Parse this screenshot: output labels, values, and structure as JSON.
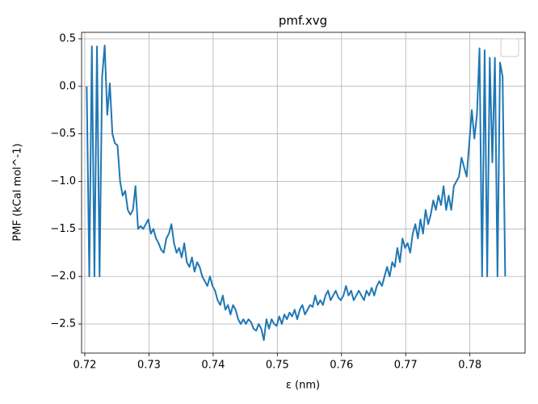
{
  "chart_data": {
    "type": "line",
    "title": "pmf.xvg",
    "x_label": "ε (nm)",
    "y_label": "PMF (kCal mol^-1)",
    "grid": true,
    "legend": "upper right",
    "xlim": [
      0.7195,
      0.7886
    ],
    "ylim": [
      -2.806,
      0.568
    ],
    "xticks": [
      0.72,
      0.73,
      0.74,
      0.75,
      0.76,
      0.77,
      0.78
    ],
    "yticks": [
      0.5,
      {
        "value": 0,
        "label": "0.0"
      },
      {
        "value": -0.5,
        "label": "−0.5"
      },
      {
        "value": -1,
        "label": "−1.0"
      },
      {
        "value": -1.5,
        "label": "−1.5"
      },
      {
        "value": -2,
        "label": "−2.0"
      },
      {
        "value": -2.5,
        "label": "−2.5"
      }
    ],
    "x": [
      0.7203,
      0.7207,
      0.7211,
      0.7215,
      0.7219,
      0.7223,
      0.7227,
      0.7231,
      0.7235,
      0.7239,
      0.7243,
      0.7247,
      0.7251,
      0.7255,
      0.7259,
      0.7263,
      0.7267,
      0.7271,
      0.7275,
      0.7279,
      0.7283,
      0.7287,
      0.7291,
      0.7295,
      0.7299,
      0.7303,
      0.7307,
      0.7311,
      0.7315,
      0.7319,
      0.7323,
      0.7327,
      0.7331,
      0.7335,
      0.7339,
      0.7343,
      0.7347,
      0.7351,
      0.7355,
      0.7359,
      0.7363,
      0.7367,
      0.7371,
      0.7375,
      0.7379,
      0.7383,
      0.7387,
      0.7391,
      0.7395,
      0.7399,
      0.7403,
      0.7407,
      0.7411,
      0.7415,
      0.7419,
      0.7423,
      0.7427,
      0.7431,
      0.7435,
      0.7439,
      0.7443,
      0.7447,
      0.7451,
      0.7455,
      0.7459,
      0.7463,
      0.7467,
      0.7471,
      0.7475,
      0.7479,
      0.7483,
      0.7487,
      0.7491,
      0.7495,
      0.7499,
      0.7503,
      0.7507,
      0.7511,
      0.7515,
      0.7519,
      0.7523,
      0.7527,
      0.7531,
      0.7535,
      0.7539,
      0.7543,
      0.7547,
      0.7551,
      0.7555,
      0.7559,
      0.7563,
      0.7567,
      0.7571,
      0.7575,
      0.7579,
      0.7583,
      0.7587,
      0.7591,
      0.7595,
      0.7599,
      0.7603,
      0.7607,
      0.7611,
      0.7615,
      0.7619,
      0.7623,
      0.7627,
      0.7631,
      0.7635,
      0.7639,
      0.7643,
      0.7647,
      0.7651,
      0.7655,
      0.7659,
      0.7663,
      0.7667,
      0.7671,
      0.7675,
      0.7679,
      0.7683,
      0.7687,
      0.7691,
      0.7695,
      0.7699,
      0.7703,
      0.7707,
      0.7711,
      0.7715,
      0.7719,
      0.7723,
      0.7727,
      0.7731,
      0.7735,
      0.7739,
      0.7743,
      0.7747,
      0.7751,
      0.7755,
      0.7759,
      0.7763,
      0.7767,
      0.7771,
      0.7775,
      0.7779,
      0.7783,
      0.7787,
      0.7791,
      0.7795,
      0.7799,
      0.7803,
      0.7807,
      0.7811,
      0.7815,
      0.7819,
      0.7823,
      0.7827,
      0.7831,
      0.7835,
      0.7839,
      0.7843,
      0.7847,
      0.7851,
      0.7855
    ],
    "series": [
      {
        "color": "#1f77b4",
        "values": [
          0,
          -2,
          0.42,
          -2,
          0.42,
          -2,
          0.1,
          0.43,
          -0.3,
          0.03,
          -0.5,
          -0.6,
          -0.62,
          -1.0,
          -1.15,
          -1.1,
          -1.3,
          -1.35,
          -1.3,
          -1.05,
          -1.5,
          -1.47,
          -1.5,
          -1.45,
          -1.4,
          -1.55,
          -1.5,
          -1.6,
          -1.65,
          -1.72,
          -1.75,
          -1.6,
          -1.55,
          -1.45,
          -1.65,
          -1.75,
          -1.7,
          -1.8,
          -1.65,
          -1.85,
          -1.9,
          -1.8,
          -1.95,
          -1.85,
          -1.9,
          -2.0,
          -2.05,
          -2.1,
          -2.0,
          -2.1,
          -2.15,
          -2.25,
          -2.3,
          -2.2,
          -2.35,
          -2.3,
          -2.4,
          -2.3,
          -2.35,
          -2.45,
          -2.5,
          -2.45,
          -2.5,
          -2.45,
          -2.48,
          -2.55,
          -2.57,
          -2.5,
          -2.55,
          -2.67,
          -2.45,
          -2.55,
          -2.45,
          -2.5,
          -2.52,
          -2.42,
          -2.5,
          -2.4,
          -2.45,
          -2.38,
          -2.42,
          -2.35,
          -2.45,
          -2.35,
          -2.3,
          -2.4,
          -2.35,
          -2.3,
          -2.32,
          -2.2,
          -2.3,
          -2.25,
          -2.3,
          -2.2,
          -2.15,
          -2.25,
          -2.2,
          -2.15,
          -2.22,
          -2.25,
          -2.2,
          -2.1,
          -2.2,
          -2.15,
          -2.25,
          -2.2,
          -2.15,
          -2.2,
          -2.25,
          -2.15,
          -2.2,
          -2.12,
          -2.2,
          -2.1,
          -2.05,
          -2.1,
          -2.0,
          -1.9,
          -2.0,
          -1.85,
          -1.9,
          -1.7,
          -1.85,
          -1.6,
          -1.7,
          -1.65,
          -1.75,
          -1.55,
          -1.45,
          -1.6,
          -1.4,
          -1.55,
          -1.3,
          -1.45,
          -1.35,
          -1.2,
          -1.3,
          -1.15,
          -1.25,
          -1.05,
          -1.3,
          -1.15,
          -1.3,
          -1.05,
          -1.0,
          -0.95,
          -0.75,
          -0.85,
          -0.95,
          -0.6,
          -0.25,
          -0.55,
          -0.3,
          0.4,
          -2,
          0.38,
          -2,
          0.3,
          -0.8,
          0.3,
          -2,
          0.25,
          0.1,
          -2
        ]
      }
    ]
  }
}
